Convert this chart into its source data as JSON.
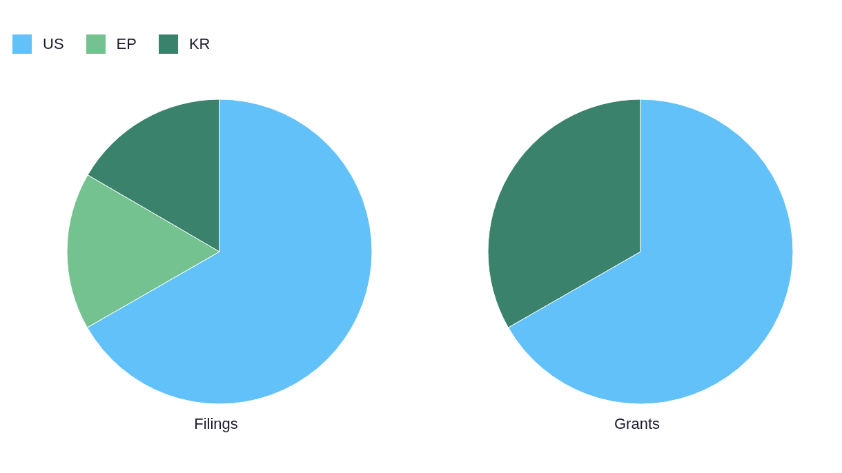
{
  "chart_data": [
    {
      "type": "pie",
      "title": "Filings",
      "categories": [
        "US",
        "EP",
        "KR"
      ],
      "values": [
        66.7,
        16.7,
        16.6
      ],
      "colors": [
        "#62c1f9",
        "#74c290",
        "#3a826b"
      ],
      "legend": "top left"
    },
    {
      "type": "pie",
      "title": "Grants",
      "categories": [
        null,
        null
      ],
      "values": [
        66.7,
        33.3
      ],
      "colors": [
        "#62c1f9",
        "#3a826b"
      ],
      "legend": false
    }
  ]
}
